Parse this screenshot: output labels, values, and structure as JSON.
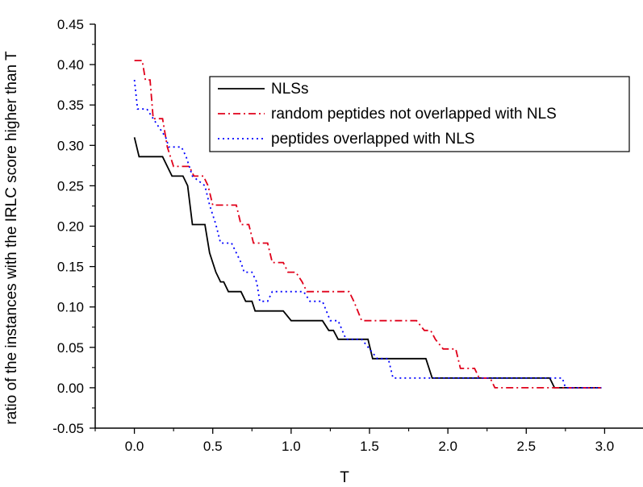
{
  "chart_data": {
    "type": "line",
    "title": "",
    "xlabel": "T",
    "ylabel": "ratio of the instances with the IRLC score higher than T",
    "xlim": [
      -0.25,
      3.25
    ],
    "ylim": [
      -0.05,
      0.45
    ],
    "xticks": [
      0.0,
      0.5,
      1.0,
      1.5,
      2.0,
      2.5,
      3.0
    ],
    "xtick_labels": [
      "0.0",
      "0.5",
      "1.0",
      "1.5",
      "2.0",
      "2.5",
      "3.0"
    ],
    "yticks": [
      -0.05,
      0.0,
      0.05,
      0.1,
      0.15,
      0.2,
      0.25,
      0.3,
      0.35,
      0.4,
      0.45
    ],
    "ytick_labels": [
      "-0.05",
      "0.00",
      "0.05",
      "0.10",
      "0.15",
      "0.20",
      "0.25",
      "0.30",
      "0.35",
      "0.40",
      "0.45"
    ],
    "grid": false,
    "legend_position": "top-right",
    "series": [
      {
        "name": "NLSs",
        "color": "#000000",
        "dash": "solid",
        "points": [
          [
            0.0,
            0.31
          ],
          [
            0.03,
            0.286
          ],
          [
            0.18,
            0.286
          ],
          [
            0.24,
            0.262
          ],
          [
            0.31,
            0.262
          ],
          [
            0.34,
            0.25
          ],
          [
            0.37,
            0.202
          ],
          [
            0.45,
            0.202
          ],
          [
            0.48,
            0.167
          ],
          [
            0.52,
            0.143
          ],
          [
            0.55,
            0.131
          ],
          [
            0.57,
            0.131
          ],
          [
            0.6,
            0.119
          ],
          [
            0.68,
            0.119
          ],
          [
            0.71,
            0.107
          ],
          [
            0.75,
            0.107
          ],
          [
            0.77,
            0.095
          ],
          [
            0.95,
            0.095
          ],
          [
            1.0,
            0.083
          ],
          [
            1.2,
            0.083
          ],
          [
            1.24,
            0.071
          ],
          [
            1.27,
            0.071
          ],
          [
            1.3,
            0.06
          ],
          [
            1.49,
            0.06
          ],
          [
            1.52,
            0.036
          ],
          [
            1.86,
            0.036
          ],
          [
            1.9,
            0.012
          ],
          [
            2.65,
            0.012
          ],
          [
            2.68,
            0.0
          ],
          [
            2.98,
            0.0
          ]
        ]
      },
      {
        "name": "random peptides not overlapped with NLS",
        "color": "#e0001a",
        "dash": "dashdot",
        "points": [
          [
            0.0,
            0.405
          ],
          [
            0.05,
            0.405
          ],
          [
            0.07,
            0.381
          ],
          [
            0.1,
            0.381
          ],
          [
            0.12,
            0.333
          ],
          [
            0.18,
            0.333
          ],
          [
            0.21,
            0.298
          ],
          [
            0.25,
            0.274
          ],
          [
            0.35,
            0.274
          ],
          [
            0.38,
            0.262
          ],
          [
            0.44,
            0.262
          ],
          [
            0.47,
            0.25
          ],
          [
            0.5,
            0.226
          ],
          [
            0.65,
            0.226
          ],
          [
            0.68,
            0.202
          ],
          [
            0.73,
            0.202
          ],
          [
            0.76,
            0.179
          ],
          [
            0.85,
            0.179
          ],
          [
            0.88,
            0.155
          ],
          [
            0.95,
            0.155
          ],
          [
            0.98,
            0.143
          ],
          [
            1.03,
            0.143
          ],
          [
            1.07,
            0.131
          ],
          [
            1.1,
            0.119
          ],
          [
            1.37,
            0.119
          ],
          [
            1.4,
            0.107
          ],
          [
            1.45,
            0.083
          ],
          [
            1.8,
            0.083
          ],
          [
            1.85,
            0.071
          ],
          [
            1.89,
            0.071
          ],
          [
            1.92,
            0.06
          ],
          [
            1.97,
            0.048
          ],
          [
            2.05,
            0.048
          ],
          [
            2.08,
            0.024
          ],
          [
            2.17,
            0.024
          ],
          [
            2.2,
            0.012
          ],
          [
            2.27,
            0.012
          ],
          [
            2.3,
            0.0
          ],
          [
            2.98,
            0.0
          ]
        ]
      },
      {
        "name": "peptides overlapped with NLS",
        "color": "#0000ff",
        "dash": "dotted",
        "points": [
          [
            0.0,
            0.381
          ],
          [
            0.02,
            0.345
          ],
          [
            0.08,
            0.345
          ],
          [
            0.12,
            0.333
          ],
          [
            0.2,
            0.31
          ],
          [
            0.22,
            0.298
          ],
          [
            0.3,
            0.298
          ],
          [
            0.33,
            0.286
          ],
          [
            0.37,
            0.262
          ],
          [
            0.45,
            0.25
          ],
          [
            0.48,
            0.226
          ],
          [
            0.52,
            0.202
          ],
          [
            0.55,
            0.179
          ],
          [
            0.62,
            0.179
          ],
          [
            0.65,
            0.167
          ],
          [
            0.68,
            0.155
          ],
          [
            0.7,
            0.143
          ],
          [
            0.75,
            0.143
          ],
          [
            0.78,
            0.131
          ],
          [
            0.8,
            0.107
          ],
          [
            0.85,
            0.107
          ],
          [
            0.88,
            0.119
          ],
          [
            1.08,
            0.119
          ],
          [
            1.12,
            0.107
          ],
          [
            1.2,
            0.107
          ],
          [
            1.25,
            0.083
          ],
          [
            1.3,
            0.083
          ],
          [
            1.35,
            0.06
          ],
          [
            1.45,
            0.06
          ],
          [
            1.5,
            0.048
          ],
          [
            1.55,
            0.036
          ],
          [
            1.62,
            0.036
          ],
          [
            1.65,
            0.012
          ],
          [
            2.73,
            0.012
          ],
          [
            2.75,
            0.0
          ],
          [
            2.98,
            0.0
          ]
        ]
      }
    ]
  }
}
